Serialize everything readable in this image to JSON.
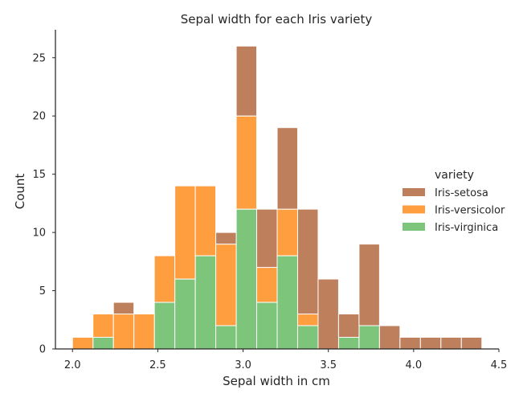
{
  "chart_data": {
    "type": "bar",
    "title": "Sepal width for each Iris variety",
    "xlabel": "Sepal width in cm",
    "ylabel": "Count",
    "xlim": [
      1.9,
      4.5
    ],
    "ylim": [
      0,
      27.4
    ],
    "xticks": [
      "2.0",
      "2.5",
      "3.0",
      "3.5",
      "4.0",
      "4.5"
    ],
    "yticks": [
      "0",
      "5",
      "10",
      "15",
      "20",
      "25"
    ],
    "stacked": true,
    "bin_edges": [
      2.0,
      2.12,
      2.24,
      2.36,
      2.48,
      2.6,
      2.72,
      2.84,
      2.96,
      3.08,
      3.2,
      3.32,
      3.44,
      3.56,
      3.68,
      3.8,
      3.92,
      4.04,
      4.16,
      4.28,
      4.4
    ],
    "legend": {
      "title": "variety",
      "position": "right"
    },
    "grid": false,
    "series": [
      {
        "name": "Iris-virginica",
        "color": "#7dc57b",
        "values": [
          0,
          1,
          0,
          0,
          4,
          6,
          8,
          2,
          12,
          4,
          8,
          2,
          0,
          1,
          2,
          0,
          0,
          0,
          0,
          0
        ]
      },
      {
        "name": "Iris-versicolor",
        "color": "#ff9e3f",
        "values": [
          1,
          2,
          3,
          3,
          4,
          8,
          6,
          7,
          8,
          3,
          4,
          1,
          0,
          0,
          0,
          0,
          0,
          0,
          0,
          0
        ]
      },
      {
        "name": "Iris-setosa",
        "color": "#bd7f5c",
        "values": [
          0,
          0,
          1,
          0,
          0,
          0,
          0,
          1,
          6,
          5,
          7,
          9,
          6,
          2,
          7,
          2,
          1,
          1,
          1,
          1
        ]
      }
    ],
    "legend_order": [
      "Iris-setosa",
      "Iris-versicolor",
      "Iris-virginica"
    ]
  }
}
